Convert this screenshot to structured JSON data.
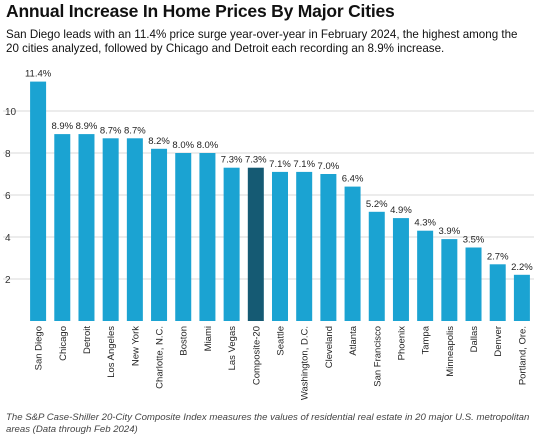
{
  "title": "Annual Increase In Home Prices By Major Cities",
  "subtitle": "San Diego leads with an 11.4% price surge year-over-year in February 2024, the highest among the 20 cities analyzed, followed by Chicago and Detroit each recording an 8.9% increase.",
  "footer": "The S&P Case-Shiller 20-City Composite Index measures the values of residential real estate in 20 major U.S. metropolitan areas (Data through Feb 2024)",
  "colors": {
    "bar": "#1ba3d2",
    "highlight": "#155a73",
    "grid": "#d9d9d9",
    "text": "#222222"
  },
  "chart_data": {
    "type": "bar",
    "categories": [
      "San Diego",
      "Chicago",
      "Detroit",
      "Los Angeles",
      "New York",
      "Charlotte, N.C.",
      "Boston",
      "Miami",
      "Las Vegas",
      "Composite-20",
      "Seattle",
      "Washington, D.C.",
      "Cleveland",
      "Atlanta",
      "San Francisco",
      "Phoenix",
      "Tampa",
      "Minneapolis",
      "Dallas",
      "Denver",
      "Portland, Ore."
    ],
    "values": [
      11.4,
      8.9,
      8.9,
      8.7,
      8.7,
      8.2,
      8.0,
      8.0,
      7.3,
      7.3,
      7.1,
      7.1,
      7.0,
      6.4,
      5.2,
      4.9,
      4.3,
      3.9,
      3.5,
      2.7,
      2.2
    ],
    "data_labels": [
      "11.4%",
      "8.9%",
      "8.9%",
      "8.7%",
      "8.7%",
      "8.2%",
      "8.0%",
      "8.0%",
      "7.3%",
      "7.3%",
      "7.1%",
      "7.1%",
      "7.0%",
      "6.4%",
      "5.2%",
      "4.9%",
      "4.3%",
      "3.9%",
      "3.5%",
      "2.7%",
      "2.2%"
    ],
    "highlight": "Composite-20",
    "yticks": [
      2,
      4,
      6,
      8,
      10
    ],
    "ylim": [
      0,
      12
    ],
    "grid": true
  }
}
